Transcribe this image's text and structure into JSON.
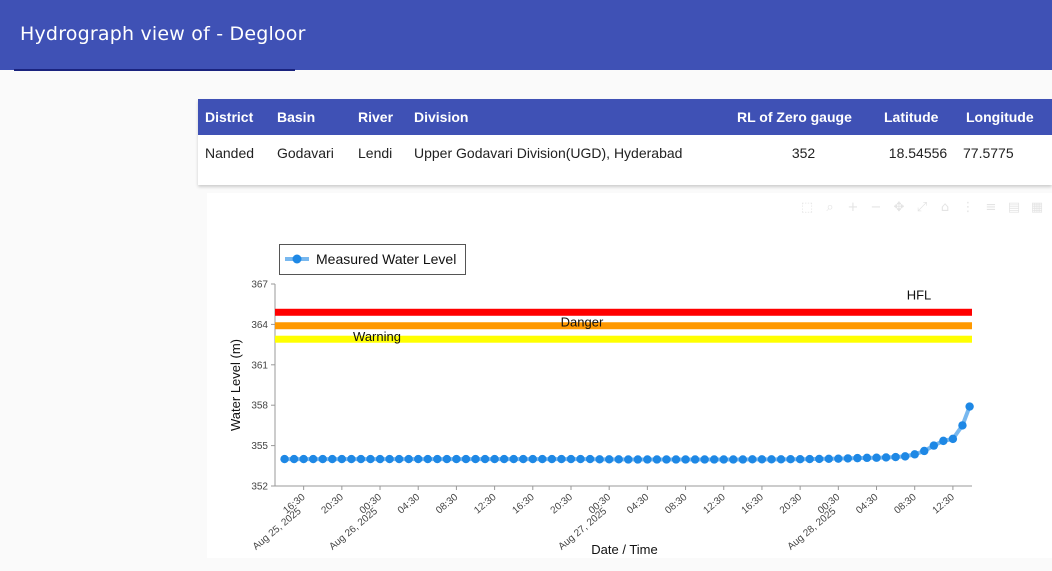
{
  "header": {
    "title": "Hydrograph view of - Degloor"
  },
  "station_table": {
    "columns": [
      "District",
      "Basin",
      "River",
      "Division",
      "RL of Zero gauge",
      "Latitude",
      "Longitude"
    ],
    "row": [
      "Nanded",
      "Godavari",
      "Lendi",
      "Upper Godavari Division(UGD), Hyderabad",
      "352",
      "18.54556",
      "77.5775"
    ]
  },
  "toolbar": {
    "icons": [
      "select-icon",
      "zoom-icon",
      "zoom-in-icon",
      "zoom-out-icon",
      "pan-icon",
      "autoscale-icon",
      "reset-axes-icon",
      "spike-lines-icon",
      "compare-hover-icon",
      "download-icon",
      "camera-icon"
    ]
  },
  "chart_data": {
    "type": "line",
    "xlabel": "Date / Time",
    "ylabel": "Water Level (m)",
    "ylim": [
      352,
      367
    ],
    "yticks": [
      "352",
      "355",
      "358",
      "361",
      "364",
      "367"
    ],
    "xticks": [
      {
        "x": "2025-08-25 16:30",
        "label": "16:30",
        "sub": "Aug 25, 2025"
      },
      {
        "x": "2025-08-25 20:30",
        "label": "20:30"
      },
      {
        "x": "2025-08-26 00:30",
        "label": "00:30",
        "sub": "Aug 26, 2025"
      },
      {
        "x": "2025-08-26 04:30",
        "label": "04:30"
      },
      {
        "x": "2025-08-26 08:30",
        "label": "08:30"
      },
      {
        "x": "2025-08-26 12:30",
        "label": "12:30"
      },
      {
        "x": "2025-08-26 16:30",
        "label": "16:30"
      },
      {
        "x": "2025-08-26 20:30",
        "label": "20:30"
      },
      {
        "x": "2025-08-27 00:30",
        "label": "00:30",
        "sub": "Aug 27, 2025"
      },
      {
        "x": "2025-08-27 04:30",
        "label": "04:30"
      },
      {
        "x": "2025-08-27 08:30",
        "label": "08:30"
      },
      {
        "x": "2025-08-27 12:30",
        "label": "12:30"
      },
      {
        "x": "2025-08-27 16:30",
        "label": "16:30"
      },
      {
        "x": "2025-08-27 20:30",
        "label": "20:30"
      },
      {
        "x": "2025-08-28 00:30",
        "label": "00:30",
        "sub": "Aug 28, 2025"
      },
      {
        "x": "2025-08-28 04:30",
        "label": "04:30"
      },
      {
        "x": "2025-08-28 08:30",
        "label": "08:30"
      },
      {
        "x": "2025-08-28 12:30",
        "label": "12:30"
      }
    ],
    "xrange": [
      "2025-08-25 13:30",
      "2025-08-28 14:30"
    ],
    "legend": {
      "placement": "top-left",
      "entries": [
        "Measured Water Level"
      ]
    },
    "reference_lines": [
      {
        "label": "HFL",
        "value": 364.9,
        "color": "#ff0000"
      },
      {
        "label": "Danger",
        "value": 363.9,
        "color": "#ff9900"
      },
      {
        "label": "Warning",
        "value": 362.9,
        "color": "#ffff00"
      }
    ],
    "series": [
      {
        "name": "Measured Water Level",
        "color": "#1e88e5",
        "points": [
          [
            "2025-08-25 14:30",
            354.0
          ],
          [
            "2025-08-25 15:30",
            354.0
          ],
          [
            "2025-08-25 16:30",
            354.0
          ],
          [
            "2025-08-25 17:30",
            354.0
          ],
          [
            "2025-08-25 18:30",
            354.0
          ],
          [
            "2025-08-25 19:30",
            354.0
          ],
          [
            "2025-08-25 20:30",
            354.0
          ],
          [
            "2025-08-25 21:30",
            354.0
          ],
          [
            "2025-08-25 22:30",
            354.0
          ],
          [
            "2025-08-25 23:30",
            354.0
          ],
          [
            "2025-08-26 00:30",
            354.0
          ],
          [
            "2025-08-26 01:30",
            354.0
          ],
          [
            "2025-08-26 02:30",
            354.0
          ],
          [
            "2025-08-26 03:30",
            354.0
          ],
          [
            "2025-08-26 04:30",
            354.0
          ],
          [
            "2025-08-26 05:30",
            354.0
          ],
          [
            "2025-08-26 06:30",
            354.0
          ],
          [
            "2025-08-26 07:30",
            354.0
          ],
          [
            "2025-08-26 08:30",
            354.0
          ],
          [
            "2025-08-26 09:30",
            354.0
          ],
          [
            "2025-08-26 10:30",
            354.0
          ],
          [
            "2025-08-26 11:30",
            354.0
          ],
          [
            "2025-08-26 12:30",
            354.0
          ],
          [
            "2025-08-26 13:30",
            354.0
          ],
          [
            "2025-08-26 14:30",
            354.0
          ],
          [
            "2025-08-26 15:30",
            354.0
          ],
          [
            "2025-08-26 16:30",
            354.0
          ],
          [
            "2025-08-26 17:30",
            354.0
          ],
          [
            "2025-08-26 18:30",
            354.0
          ],
          [
            "2025-08-26 19:30",
            354.0
          ],
          [
            "2025-08-26 20:30",
            354.0
          ],
          [
            "2025-08-26 21:30",
            354.0
          ],
          [
            "2025-08-26 22:30",
            354.0
          ],
          [
            "2025-08-26 23:30",
            353.98
          ],
          [
            "2025-08-27 00:30",
            353.98
          ],
          [
            "2025-08-27 01:30",
            353.98
          ],
          [
            "2025-08-27 02:30",
            353.97
          ],
          [
            "2025-08-27 03:30",
            353.97
          ],
          [
            "2025-08-27 04:30",
            353.97
          ],
          [
            "2025-08-27 05:30",
            353.97
          ],
          [
            "2025-08-27 06:30",
            353.97
          ],
          [
            "2025-08-27 07:30",
            353.97
          ],
          [
            "2025-08-27 08:30",
            353.97
          ],
          [
            "2025-08-27 09:30",
            353.97
          ],
          [
            "2025-08-27 10:30",
            353.97
          ],
          [
            "2025-08-27 11:30",
            353.97
          ],
          [
            "2025-08-27 12:30",
            353.97
          ],
          [
            "2025-08-27 13:30",
            353.97
          ],
          [
            "2025-08-27 14:30",
            353.97
          ],
          [
            "2025-08-27 15:30",
            353.98
          ],
          [
            "2025-08-27 16:30",
            353.98
          ],
          [
            "2025-08-27 17:30",
            353.98
          ],
          [
            "2025-08-27 18:30",
            353.98
          ],
          [
            "2025-08-27 19:30",
            353.99
          ],
          [
            "2025-08-27 20:30",
            353.99
          ],
          [
            "2025-08-27 21:30",
            354.0
          ],
          [
            "2025-08-27 22:30",
            354.01
          ],
          [
            "2025-08-27 23:30",
            354.02
          ],
          [
            "2025-08-28 00:30",
            354.03
          ],
          [
            "2025-08-28 01:30",
            354.05
          ],
          [
            "2025-08-28 02:30",
            354.07
          ],
          [
            "2025-08-28 03:30",
            354.09
          ],
          [
            "2025-08-28 04:30",
            354.1
          ],
          [
            "2025-08-28 05:30",
            354.12
          ],
          [
            "2025-08-28 06:30",
            354.15
          ],
          [
            "2025-08-28 07:30",
            354.2
          ],
          [
            "2025-08-28 08:30",
            354.35
          ],
          [
            "2025-08-28 09:30",
            354.6
          ],
          [
            "2025-08-28 10:30",
            355.0
          ],
          [
            "2025-08-28 11:30",
            355.35
          ],
          [
            "2025-08-28 12:30",
            355.5
          ],
          [
            "2025-08-28 13:30",
            356.5
          ],
          [
            "2025-08-28 14:15",
            357.9
          ]
        ]
      }
    ]
  }
}
